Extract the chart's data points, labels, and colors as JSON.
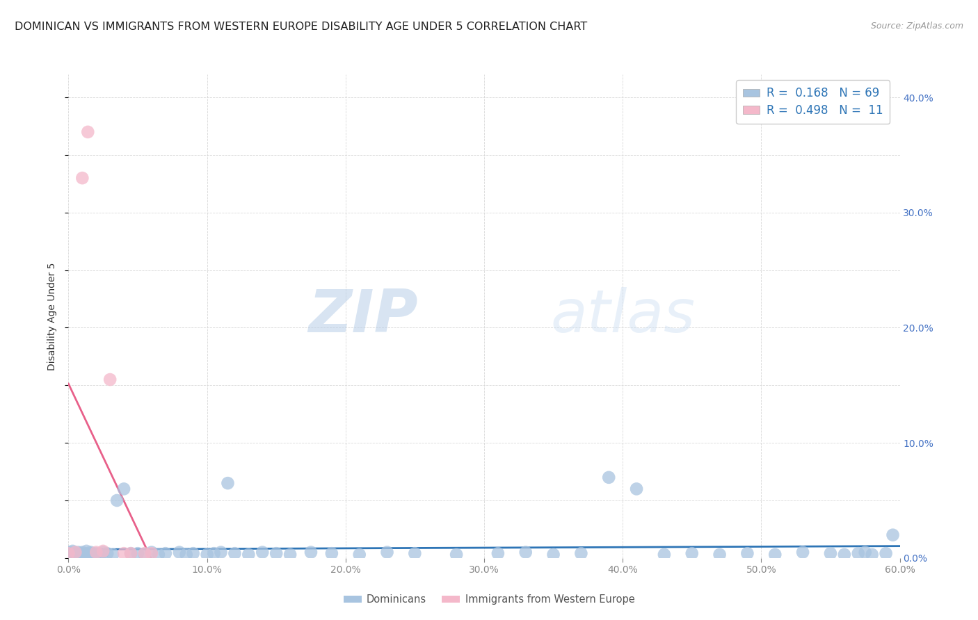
{
  "title": "DOMINICAN VS IMMIGRANTS FROM WESTERN EUROPE DISABILITY AGE UNDER 5 CORRELATION CHART",
  "source": "Source: ZipAtlas.com",
  "ylabel": "Disability Age Under 5",
  "xlim": [
    0.0,
    0.6
  ],
  "ylim": [
    0.0,
    0.42
  ],
  "background_color": "#ffffff",
  "grid_color": "#d8d8d8",
  "watermark_zip": "ZIP",
  "watermark_atlas": "atlas",
  "series": [
    {
      "name": "Dominicans",
      "marker_color": "#a8c4e0",
      "trend_color": "#2e75b6",
      "R": 0.168,
      "N": 69,
      "trend_style": "-",
      "x": [
        0.0,
        0.001,
        0.002,
        0.003,
        0.004,
        0.005,
        0.006,
        0.007,
        0.008,
        0.009,
        0.01,
        0.011,
        0.012,
        0.013,
        0.014,
        0.015,
        0.016,
        0.017,
        0.018,
        0.02,
        0.022,
        0.025,
        0.028,
        0.032,
        0.035,
        0.04,
        0.045,
        0.05,
        0.055,
        0.06,
        0.065,
        0.07,
        0.08,
        0.085,
        0.09,
        0.1,
        0.105,
        0.11,
        0.115,
        0.12,
        0.13,
        0.14,
        0.15,
        0.16,
        0.175,
        0.19,
        0.21,
        0.23,
        0.25,
        0.28,
        0.31,
        0.33,
        0.35,
        0.37,
        0.39,
        0.41,
        0.43,
        0.45,
        0.47,
        0.49,
        0.51,
        0.53,
        0.55,
        0.56,
        0.57,
        0.575,
        0.58,
        0.59,
        0.595
      ],
      "y": [
        0.005,
        0.004,
        0.003,
        0.006,
        0.005,
        0.004,
        0.003,
        0.005,
        0.004,
        0.003,
        0.005,
        0.004,
        0.003,
        0.006,
        0.004,
        0.003,
        0.005,
        0.004,
        0.003,
        0.004,
        0.003,
        0.005,
        0.004,
        0.003,
        0.05,
        0.06,
        0.004,
        0.004,
        0.003,
        0.005,
        0.003,
        0.004,
        0.005,
        0.003,
        0.004,
        0.003,
        0.004,
        0.005,
        0.065,
        0.004,
        0.003,
        0.005,
        0.004,
        0.003,
        0.005,
        0.004,
        0.003,
        0.005,
        0.004,
        0.003,
        0.004,
        0.005,
        0.003,
        0.004,
        0.07,
        0.06,
        0.003,
        0.004,
        0.003,
        0.004,
        0.003,
        0.005,
        0.004,
        0.003,
        0.004,
        0.005,
        0.003,
        0.004,
        0.02
      ]
    },
    {
      "name": "Immigrants from Western Europe",
      "marker_color": "#f4b8ca",
      "trend_color": "#e8608a",
      "R": 0.498,
      "N": 11,
      "trend_style": "--",
      "x": [
        0.0,
        0.005,
        0.01,
        0.014,
        0.02,
        0.025,
        0.03,
        0.04,
        0.045,
        0.055,
        0.06
      ],
      "y": [
        0.004,
        0.005,
        0.33,
        0.37,
        0.005,
        0.006,
        0.155,
        0.004,
        0.004,
        0.004,
        0.004
      ]
    }
  ],
  "xticks": [
    0.0,
    0.1,
    0.2,
    0.3,
    0.4,
    0.5,
    0.6
  ],
  "yticks_right": [
    0.0,
    0.1,
    0.2,
    0.3,
    0.4
  ],
  "legend_R_color": "#2e75b6",
  "legend_N_color": "#333333",
  "title_fontsize": 11.5,
  "source_fontsize": 9,
  "tick_fontsize": 10,
  "ylabel_fontsize": 10
}
